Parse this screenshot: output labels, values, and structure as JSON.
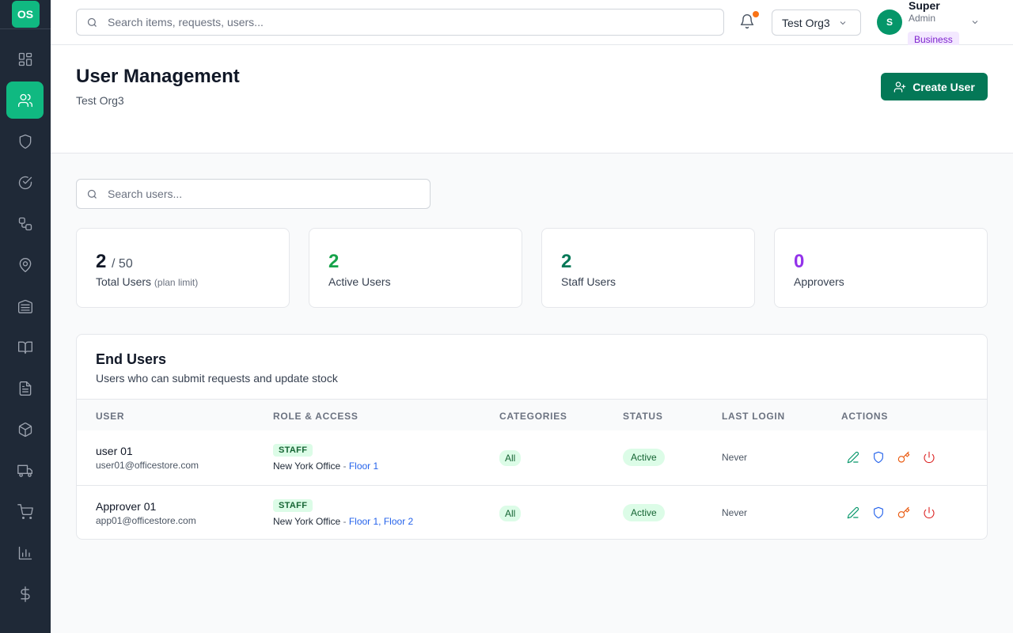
{
  "app": {
    "logo_text": "OS"
  },
  "sidebar": {
    "items": [
      {
        "icon": "dashboard-icon",
        "active": false
      },
      {
        "icon": "users-icon",
        "active": true
      },
      {
        "icon": "shield-icon",
        "active": false
      },
      {
        "icon": "check-circle-icon",
        "active": false
      },
      {
        "icon": "workflow-icon",
        "active": false
      },
      {
        "icon": "location-pin-icon",
        "active": false
      },
      {
        "icon": "warehouse-icon",
        "active": false
      },
      {
        "icon": "book-icon",
        "active": false
      },
      {
        "icon": "document-icon",
        "active": false
      },
      {
        "icon": "package-icon",
        "active": false
      },
      {
        "icon": "truck-icon",
        "active": false
      },
      {
        "icon": "cart-icon",
        "active": false
      },
      {
        "icon": "bar-chart-icon",
        "active": false
      },
      {
        "icon": "dollar-icon",
        "active": false
      }
    ]
  },
  "topbar": {
    "search_placeholder": "Search items, requests, users...",
    "org_name": "Test Org3",
    "user": {
      "initial": "S",
      "name": "Super",
      "role": "Admin",
      "plan": "Business"
    }
  },
  "page": {
    "title": "User Management",
    "subtitle": "Test Org3",
    "create_label": "Create User",
    "search_placeholder": "Search users..."
  },
  "stats": {
    "total": {
      "value": "2",
      "limit": "/ 50",
      "label": "Total Users",
      "hint": "(plan limit)",
      "color": "#111827"
    },
    "active": {
      "value": "2",
      "label": "Active Users",
      "color": "#16a34a"
    },
    "staff": {
      "value": "2",
      "label": "Staff Users",
      "color": "#047857"
    },
    "approvers": {
      "value": "0",
      "label": "Approvers",
      "color": "#9333ea"
    }
  },
  "table": {
    "title": "End Users",
    "description": "Users who can submit requests and update stock",
    "columns": [
      "USER",
      "ROLE & ACCESS",
      "CATEGORIES",
      "STATUS",
      "LAST LOGIN",
      "ACTIONS"
    ],
    "rows": [
      {
        "name": "user 01",
        "email": "user01@officestore.com",
        "role": "STAFF",
        "office": "New York Office",
        "sep": " - ",
        "floors": "Floor 1",
        "categories": "All",
        "status": "Active",
        "last_login": "Never"
      },
      {
        "name": "Approver 01",
        "email": "app01@officestore.com",
        "role": "STAFF",
        "office": "New York Office",
        "sep": " - ",
        "floors": "Floor 1, Floor 2",
        "categories": "All",
        "status": "Active",
        "last_login": "Never"
      }
    ]
  }
}
